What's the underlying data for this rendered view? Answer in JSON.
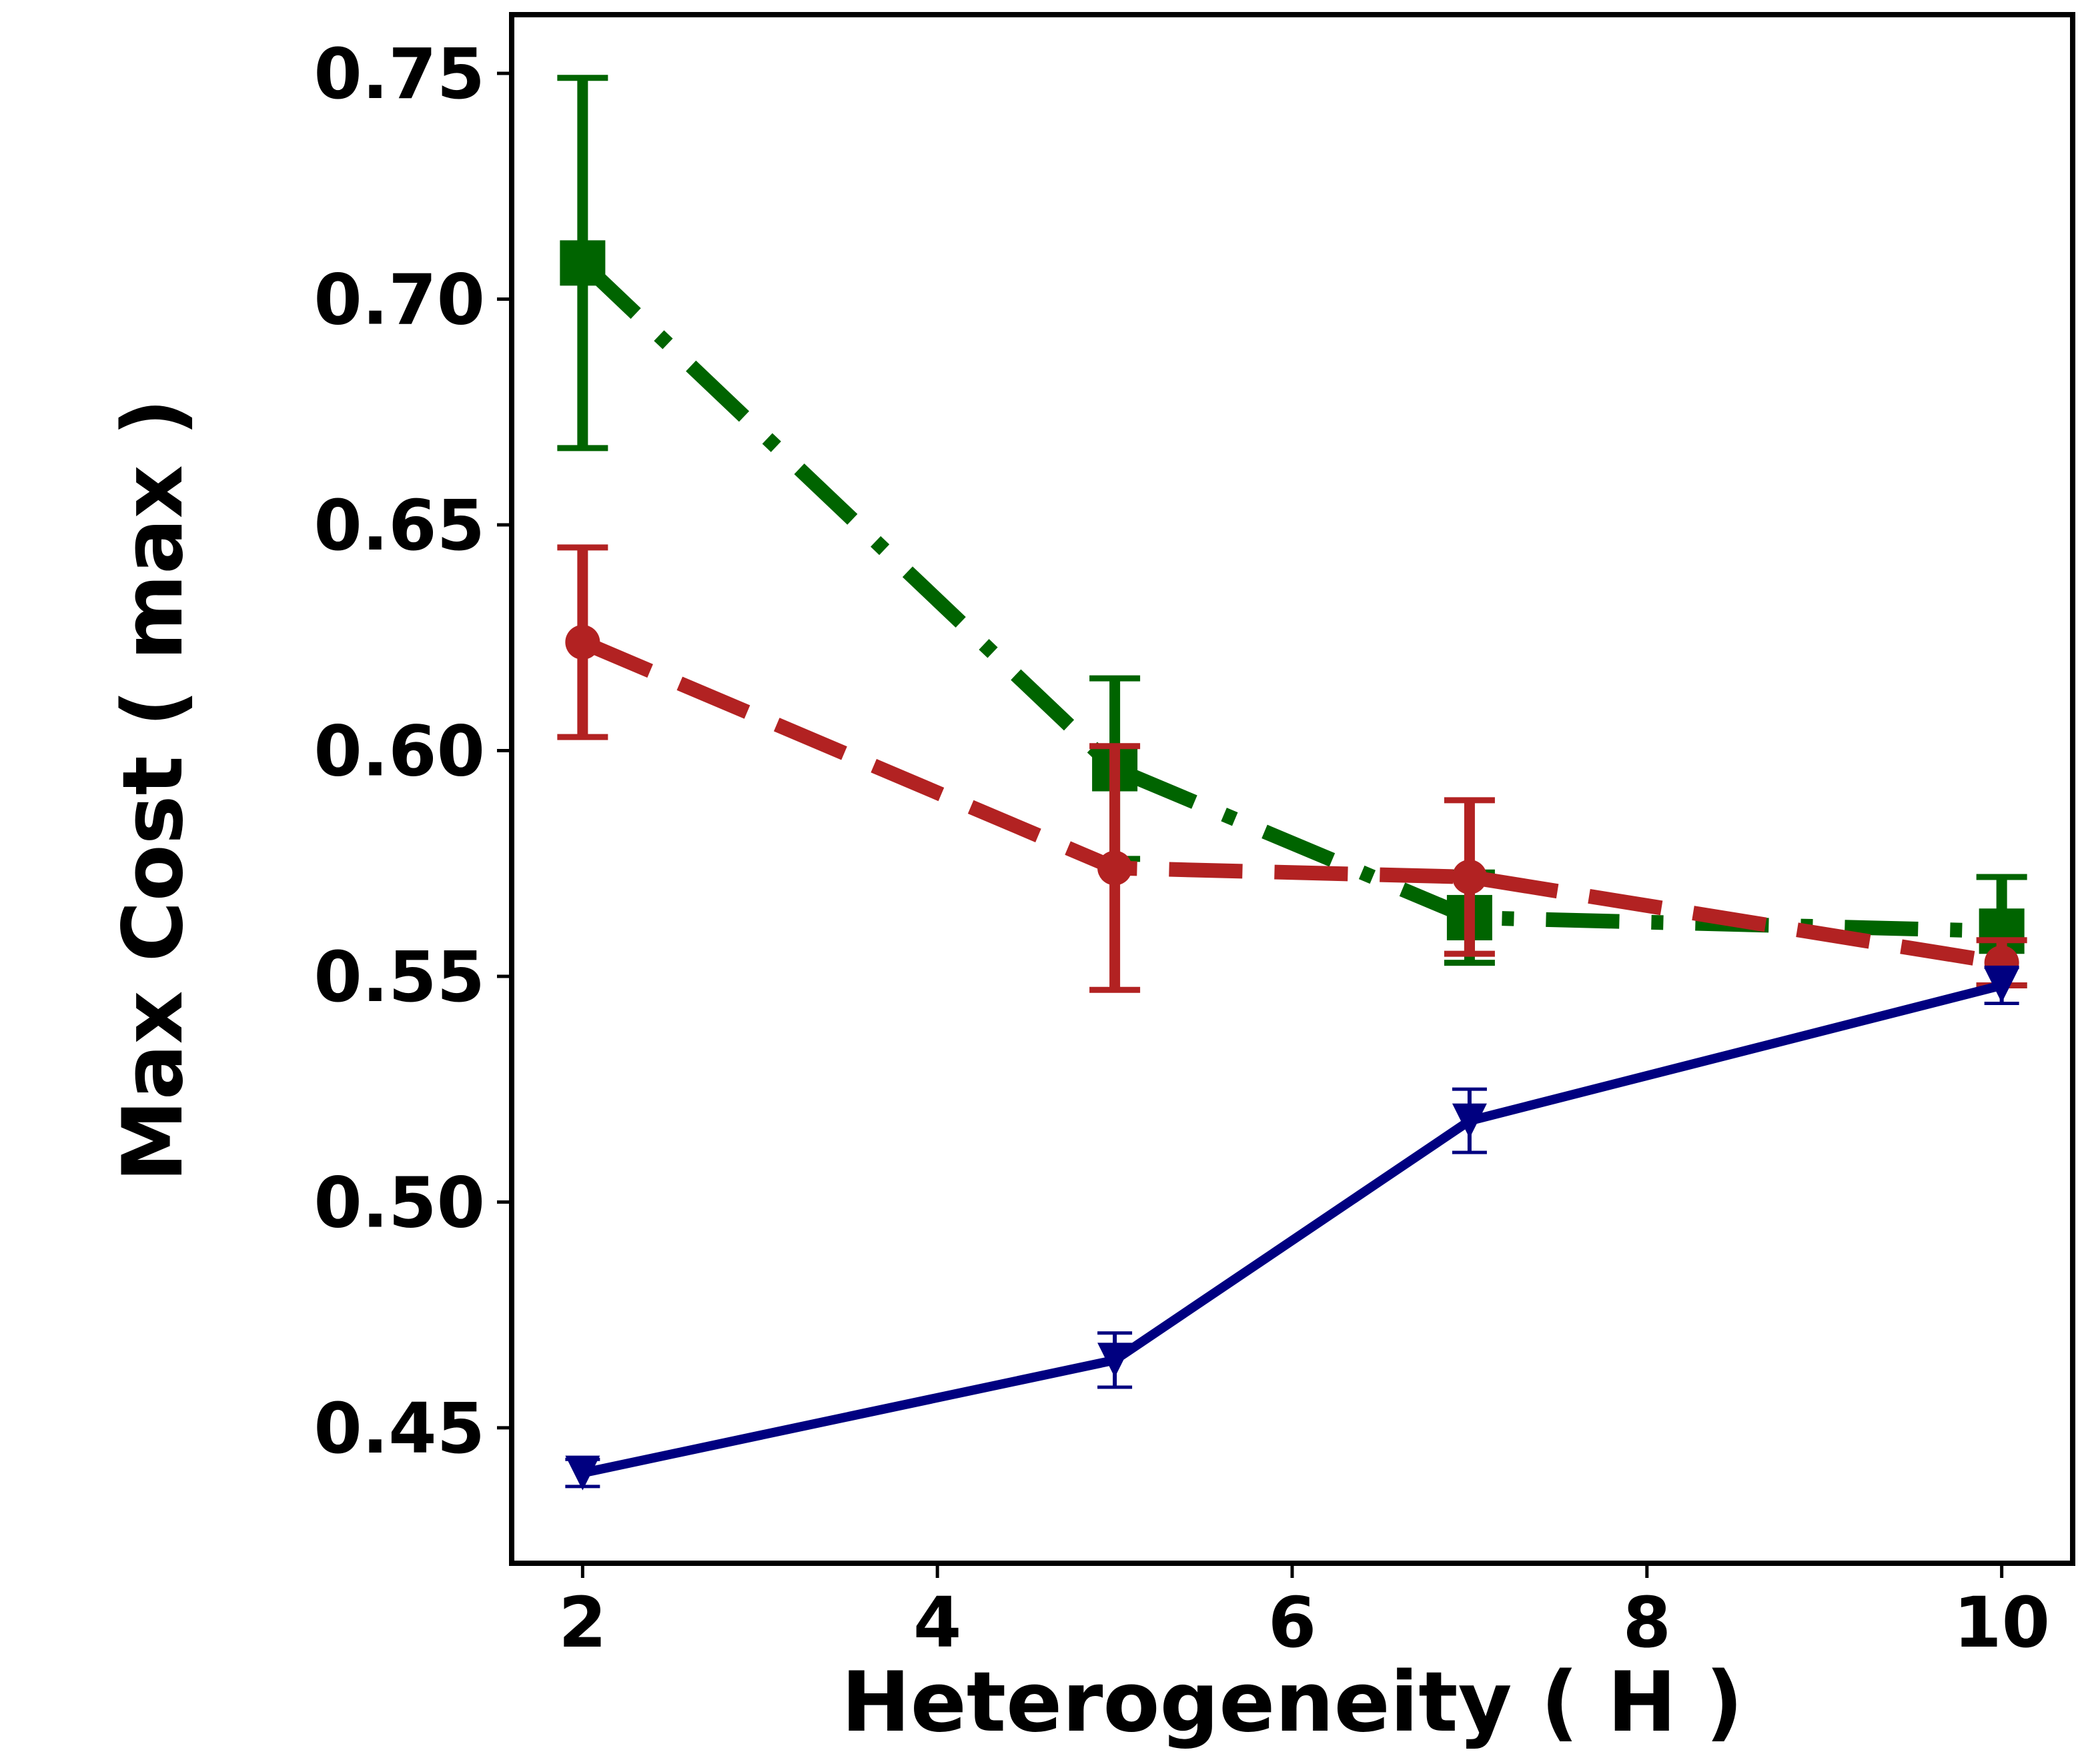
{
  "chart_data": {
    "type": "line",
    "title": "",
    "xlabel": "Heterogeneity ( H )",
    "ylabel": "Max Cost ( max  )",
    "xlim": [
      1.6,
      10.4
    ],
    "ylim": [
      0.42,
      0.763
    ],
    "xticks": [
      2,
      4,
      6,
      8,
      10
    ],
    "yticks": [
      0.45,
      0.5,
      0.55,
      0.6,
      0.65,
      0.7,
      0.75
    ],
    "grid": false,
    "legend": "none",
    "series": [
      {
        "name": "green-dashdot",
        "color": "#006400",
        "linestyle": "dashdot",
        "marker": "square",
        "x": [
          2,
          5,
          7,
          10
        ],
        "y": [
          0.708,
          0.596,
          0.563,
          0.56
        ],
        "err": [
          0.041,
          0.02,
          0.01,
          0.012
        ]
      },
      {
        "name": "red-dashed",
        "color": "#B22222",
        "linestyle": "dashed",
        "marker": "circle",
        "x": [
          2,
          5,
          7,
          10
        ],
        "y": [
          0.624,
          0.574,
          0.572,
          0.553
        ],
        "err": [
          0.021,
          0.027,
          0.017,
          0.005
        ]
      },
      {
        "name": "navy-solid",
        "color": "#000080",
        "linestyle": "solid",
        "marker": "triangle-down",
        "x": [
          2,
          5,
          7,
          10
        ],
        "y": [
          0.44,
          0.465,
          0.518,
          0.548
        ],
        "err": [
          0.003,
          0.006,
          0.007,
          0.004
        ]
      }
    ]
  }
}
